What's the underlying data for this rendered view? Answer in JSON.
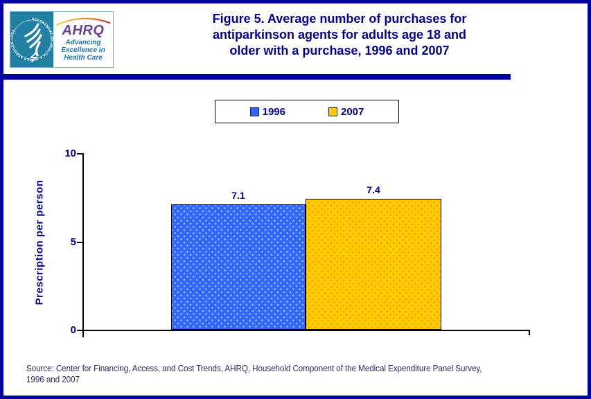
{
  "page": {
    "border_color": "#0202A0",
    "background": "#FFFFFF"
  },
  "header": {
    "logo": {
      "seal_text": "DEPARTMENT OF HEALTH & HUMAN SERVICES · USA",
      "ahrq_acronym": "AHRQ",
      "tagline": [
        "Advancing",
        "Excellence in",
        "Health Care"
      ]
    },
    "title_lines": [
      "Figure 5. Average number of purchases for",
      "antiparkinson agents for adults age 18 and",
      "older with a purchase, 1996 and 2007"
    ]
  },
  "legend": {
    "items": [
      {
        "label": "1996",
        "color": "#3366FF"
      },
      {
        "label": "2007",
        "color": "#FFCC00"
      }
    ]
  },
  "chart_data": {
    "type": "bar",
    "title": "Figure 5. Average number of purchases for antiparkinson agents for adults age 18 and older with a purchase, 1996 and 2007",
    "categories": [
      "1996",
      "2007"
    ],
    "values": [
      7.1,
      7.4
    ],
    "bar_labels": [
      "7.1",
      "7.4"
    ],
    "xlabel": "",
    "ylabel": "Prescription per person",
    "ylim": [
      0,
      10
    ],
    "yticks": [
      "0",
      "5",
      "10"
    ],
    "series_colors": [
      "#3366FF",
      "#FFCC00"
    ],
    "legend_position": "top-center",
    "grid": false
  },
  "footer": {
    "source_lines": [
      "Source: Center for Financing, Access, and Cost Trends, AHRQ, Household Component of the Medical Expenditure Panel Survey,",
      "1996 and 2007"
    ]
  }
}
